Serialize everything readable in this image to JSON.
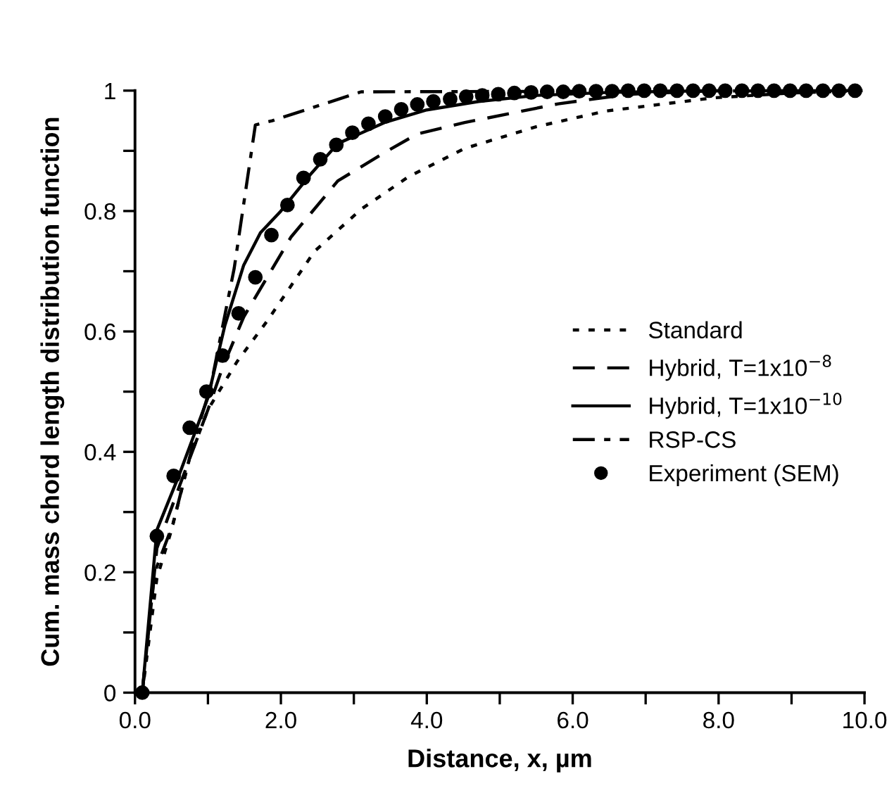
{
  "chart_data": {
    "type": "line",
    "xlabel": "Distance, x, µm",
    "ylabel": "Cum. mass chord length distribution function",
    "xlim": [
      0,
      10
    ],
    "ylim": [
      0,
      1
    ],
    "xticks": [
      {
        "value": 0,
        "label": "0.0"
      },
      {
        "value": 1,
        "label": null
      },
      {
        "value": 2,
        "label": "2.0"
      },
      {
        "value": 3,
        "label": null
      },
      {
        "value": 4,
        "label": "4.0"
      },
      {
        "value": 5,
        "label": null
      },
      {
        "value": 6,
        "label": "6.0"
      },
      {
        "value": 7,
        "label": null
      },
      {
        "value": 8,
        "label": "8.0"
      },
      {
        "value": 9,
        "label": null
      },
      {
        "value": 10,
        "label": "10.0"
      }
    ],
    "yticks": [
      0,
      {
        "value": 0.1,
        "label": null
      },
      0.2,
      {
        "value": 0.3,
        "label": null
      },
      0.4,
      {
        "value": 0.5,
        "label": null
      },
      0.6,
      {
        "value": 0.7,
        "label": null
      },
      0.8,
      {
        "value": 0.9,
        "label": null
      },
      1
    ],
    "grid": false,
    "legend": "right",
    "series": [
      {
        "name": "Standard",
        "color": "#000000",
        "line_style": "dotted",
        "marker": "none",
        "x": [
          0.1,
          0.3,
          0.5,
          0.75,
          1.0,
          1.4,
          1.81,
          2.46,
          3.1,
          3.75,
          4.52,
          5.5,
          6.45,
          7.93,
          9.0,
          10.0
        ],
        "values": [
          0,
          0.19,
          0.27,
          0.39,
          0.47,
          0.55,
          0.617,
          0.733,
          0.803,
          0.857,
          0.904,
          0.94,
          0.966,
          0.988,
          0.996,
          1.0
        ]
      },
      {
        "name": "Hybrid, T=1x10$^{−8}$",
        "color": "#000000",
        "line_style": "dashed",
        "marker": "none",
        "x": [
          0.1,
          0.3,
          0.6,
          1.0,
          1.2,
          1.49,
          2.14,
          2.78,
          3.42,
          3.87,
          4.52,
          5.8,
          6.77,
          8.0
        ],
        "values": [
          0,
          0.24,
          0.34,
          0.47,
          0.54,
          0.624,
          0.757,
          0.85,
          0.897,
          0.928,
          0.947,
          0.978,
          0.994,
          1.0
        ]
      },
      {
        "name": "Hybrid, T=1x10$^{−10}$",
        "color": "#000000",
        "line_style": "solid",
        "marker": "none",
        "x": [
          0.1,
          0.3,
          0.6,
          1.0,
          1.23,
          1.49,
          1.72,
          2.0,
          2.4,
          2.78,
          3.42,
          4.0,
          4.71,
          5.5,
          6.5,
          8.0
        ],
        "values": [
          0,
          0.27,
          0.36,
          0.49,
          0.609,
          0.71,
          0.764,
          0.8,
          0.86,
          0.912,
          0.947,
          0.968,
          0.982,
          0.992,
          0.997,
          1.0
        ]
      },
      {
        "name": "RSP-CS",
        "color": "#000000",
        "line_style": "dashdot",
        "marker": "none",
        "x": [
          0.1,
          0.27,
          0.52,
          0.79,
          1.04,
          1.36,
          1.65,
          1.88,
          3.1,
          9.87
        ],
        "values": [
          0,
          0.2,
          0.28,
          0.41,
          0.51,
          0.705,
          0.943,
          0.95,
          0.998,
          1.0
        ]
      },
      {
        "name": "Experiment (SEM)",
        "type": "scatter",
        "color": "#000000",
        "marker": "circle",
        "x": [
          0.1,
          0.3,
          0.53,
          0.75,
          0.98,
          1.2,
          1.42,
          1.65,
          1.87,
          2.09,
          2.31,
          2.54,
          2.76,
          2.98,
          3.2,
          3.43,
          3.65,
          3.87,
          4.09,
          4.32,
          4.54,
          4.76,
          4.98,
          5.2,
          5.43,
          5.65,
          5.87,
          6.09,
          6.32,
          6.54,
          6.76,
          6.98,
          7.2,
          7.43,
          7.65,
          7.87,
          8.09,
          8.32,
          8.54,
          8.76,
          8.98,
          9.2,
          9.43,
          9.65,
          9.87
        ],
        "values": [
          0,
          0.26,
          0.36,
          0.44,
          0.5,
          0.56,
          0.63,
          0.69,
          0.76,
          0.81,
          0.855,
          0.886,
          0.91,
          0.93,
          0.945,
          0.957,
          0.969,
          0.977,
          0.982,
          0.986,
          0.99,
          0.992,
          0.994,
          0.996,
          0.997,
          0.998,
          0.998,
          0.999,
          0.999,
          0.999,
          1.0,
          1.0,
          1.0,
          1.0,
          1.0,
          1.0,
          1.0,
          1.0,
          1.0,
          1.0,
          1.0,
          1.0,
          1.0,
          1.0,
          1.0
        ]
      }
    ]
  }
}
